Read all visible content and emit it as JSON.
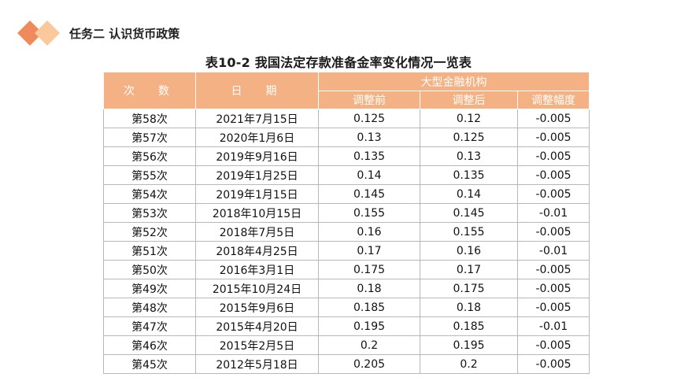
{
  "header": {
    "title": "任务二  认识货币政策",
    "logo_colors": [
      "#f08a5d",
      "#f9c89b"
    ]
  },
  "table_title": "表10-2   我国法定存款准备金率变化情况一览表",
  "table": {
    "col_count": "次　数",
    "col_date": "日　期",
    "group_label": "大型金融机构",
    "col_before": "调整前",
    "col_after": "调整后",
    "col_change": "调整幅度",
    "rows": [
      {
        "count": "第58次",
        "date": "2021年7月15日",
        "before": "0.125",
        "after": "0.12",
        "change": "-0.005"
      },
      {
        "count": "第57次",
        "date": "2020年1月6日",
        "before": "0.13",
        "after": "0.125",
        "change": "-0.005"
      },
      {
        "count": "第56次",
        "date": "2019年9月16日",
        "before": "0.135",
        "after": "0.13",
        "change": "-0.005"
      },
      {
        "count": "第55次",
        "date": "2019年1月25日",
        "before": "0.14",
        "after": "0.135",
        "change": "-0.005"
      },
      {
        "count": "第54次",
        "date": "2019年1月15日",
        "before": "0.145",
        "after": "0.14",
        "change": "-0.005"
      },
      {
        "count": "第53次",
        "date": "2018年10月15日",
        "before": "0.155",
        "after": "0.145",
        "change": "-0.01"
      },
      {
        "count": "第52次",
        "date": "2018年7月5日",
        "before": "0.16",
        "after": "0.155",
        "change": "-0.005"
      },
      {
        "count": "第51次",
        "date": "2018年4月25日",
        "before": "0.17",
        "after": "0.16",
        "change": "-0.01"
      },
      {
        "count": "第50次",
        "date": "2016年3月1日",
        "before": "0.175",
        "after": "0.17",
        "change": "-0.005"
      },
      {
        "count": "第49次",
        "date": "2015年10月24日",
        "before": "0.18",
        "after": "0.175",
        "change": "-0.005"
      },
      {
        "count": "第48次",
        "date": "2015年9月6日",
        "before": "0.185",
        "after": "0.18",
        "change": "-0.005"
      },
      {
        "count": "第47次",
        "date": "2015年4月20日",
        "before": "0.195",
        "after": "0.185",
        "change": "-0.01"
      },
      {
        "count": "第46次",
        "date": "2015年2月5日",
        "before": "0.2",
        "after": "0.195",
        "change": "-0.005"
      },
      {
        "count": "第45次",
        "date": "2012年5月18日",
        "before": "0.205",
        "after": "0.2",
        "change": "-0.005"
      }
    ]
  }
}
